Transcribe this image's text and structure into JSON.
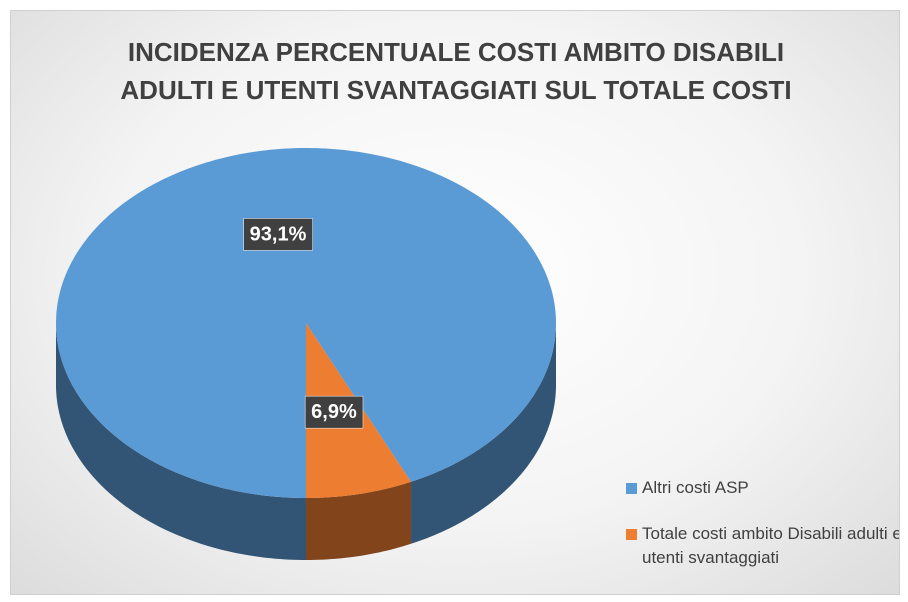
{
  "chart_data": {
    "type": "pie",
    "title": "INCIDENZA PERCENTUALE COSTI AMBITO DISABILI ADULTI E UTENTI SVANTAGGIATI SUL TOTALE COSTI",
    "categories": [
      "Totale costi ambito Disabili adulti e utenti svantaggiati",
      "Altri costi ASP"
    ],
    "values": [
      6.9,
      93.1
    ],
    "value_labels": [
      "6,9%",
      "93,1%"
    ],
    "colors": [
      "#ed7d31",
      "#5b9bd5"
    ],
    "legend": "bottom-right"
  }
}
